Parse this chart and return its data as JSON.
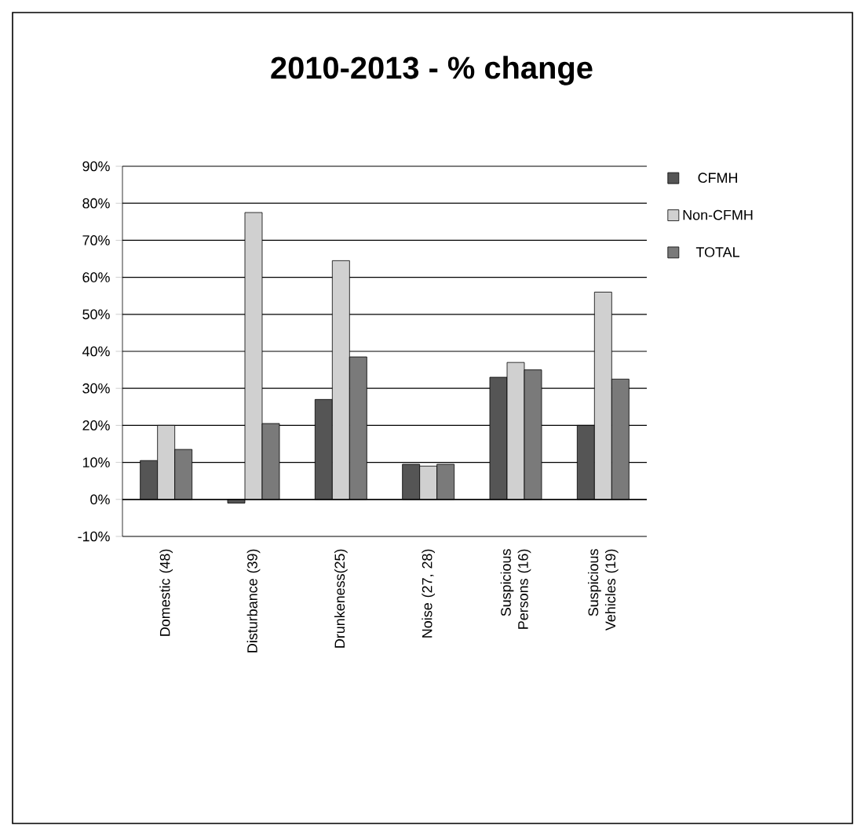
{
  "chart_data": {
    "type": "bar",
    "title": "2010-2013 - % change",
    "categories": [
      "Domestic (48)",
      "Disturbance (39)",
      "Drunkeness(25)",
      "Noise (27, 28)",
      "Suspicious Persons (16)",
      "Suspicious Vehicles (19)"
    ],
    "series": [
      {
        "name": "CFMH",
        "color": "#555555",
        "values": [
          10.5,
          -1,
          27,
          9.5,
          33,
          20
        ]
      },
      {
        "name": "Non-CFMH",
        "color": "#d0d0d0",
        "values": [
          20,
          77.5,
          64.5,
          9,
          37,
          56
        ]
      },
      {
        "name": "TOTAL",
        "color": "#7a7a7a",
        "values": [
          13.5,
          20.5,
          38.5,
          9.5,
          35,
          32.5
        ]
      }
    ],
    "ylim": [
      -10,
      90
    ],
    "yticks": [
      {
        "value": -10,
        "label": "-10%"
      },
      {
        "value": 0,
        "label": "0%"
      },
      {
        "value": 10,
        "label": "10%"
      },
      {
        "value": 20,
        "label": "20%"
      },
      {
        "value": 30,
        "label": "30%"
      },
      {
        "value": 40,
        "label": "40%"
      },
      {
        "value": 50,
        "label": "50%"
      },
      {
        "value": 60,
        "label": "60%"
      },
      {
        "value": 70,
        "label": "70%"
      },
      {
        "value": 80,
        "label": "80%"
      },
      {
        "value": 90,
        "label": "90%"
      }
    ],
    "grid": "y",
    "legend": "right"
  }
}
